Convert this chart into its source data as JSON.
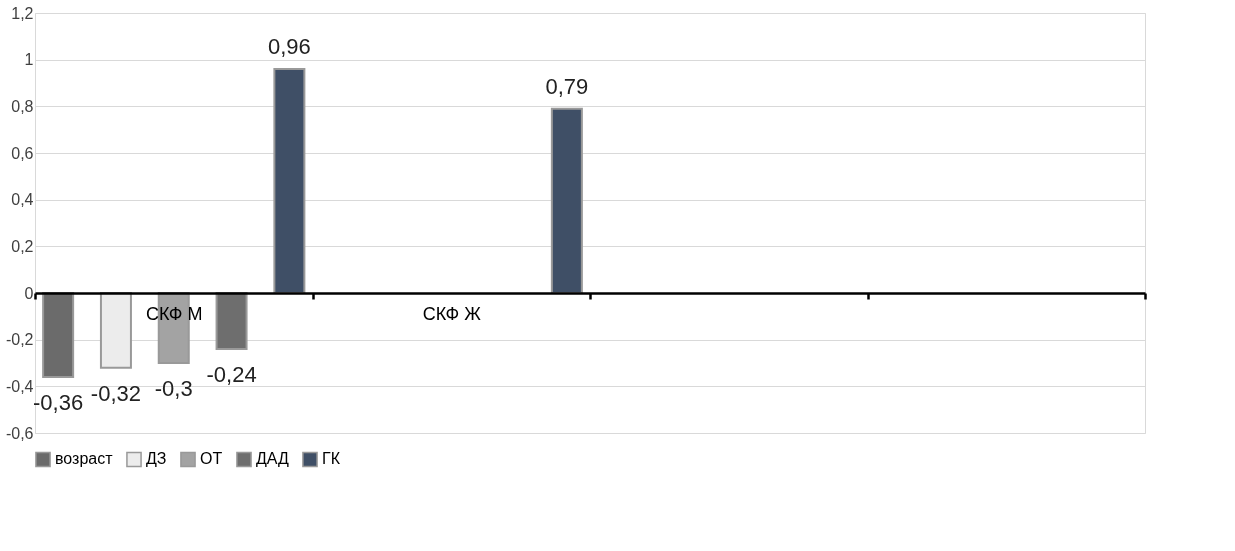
{
  "chart_data": {
    "type": "bar",
    "categories": [
      "СКФ М",
      "СКФ Ж",
      null,
      null
    ],
    "series": [
      {
        "name": "возраст",
        "color": "#6b6b6b",
        "values": [
          -0.36,
          null,
          null,
          null
        ],
        "value_labels": [
          "-0,36",
          null,
          null,
          null
        ]
      },
      {
        "name": "ДЗ",
        "color": "#ececec",
        "values": [
          -0.32,
          null,
          null,
          null
        ],
        "value_labels": [
          "-0,32",
          null,
          null,
          null
        ]
      },
      {
        "name": "ОТ",
        "color": "#a3a3a3",
        "values": [
          -0.3,
          null,
          null,
          null
        ],
        "value_labels": [
          "-0,3",
          null,
          null,
          null
        ]
      },
      {
        "name": "ДАД",
        "color": "#6e6e6e",
        "values": [
          -0.24,
          null,
          null,
          null
        ],
        "value_labels": [
          "-0,24",
          null,
          null,
          null
        ]
      },
      {
        "name": "ГК",
        "color": "#3f4f66",
        "values": [
          0.96,
          0.79,
          null,
          null
        ],
        "value_labels": [
          "0,96",
          "0,79",
          null,
          null
        ]
      }
    ],
    "ylim": [
      -0.6,
      1.2
    ],
    "yticks": [
      {
        "value": -0.6,
        "label": "-0,6"
      },
      {
        "value": -0.4,
        "label": "-0,4"
      },
      {
        "value": -0.2,
        "label": "-0,2"
      },
      0,
      {
        "value": 0.2,
        "label": "0,2"
      },
      {
        "value": 0.4,
        "label": "0,4"
      },
      {
        "value": 0.6,
        "label": "0,6"
      },
      {
        "value": 0.8,
        "label": "0,8"
      },
      1,
      {
        "value": 1.2,
        "label": "1,2"
      }
    ],
    "grid": "y",
    "legend": "bottom"
  }
}
